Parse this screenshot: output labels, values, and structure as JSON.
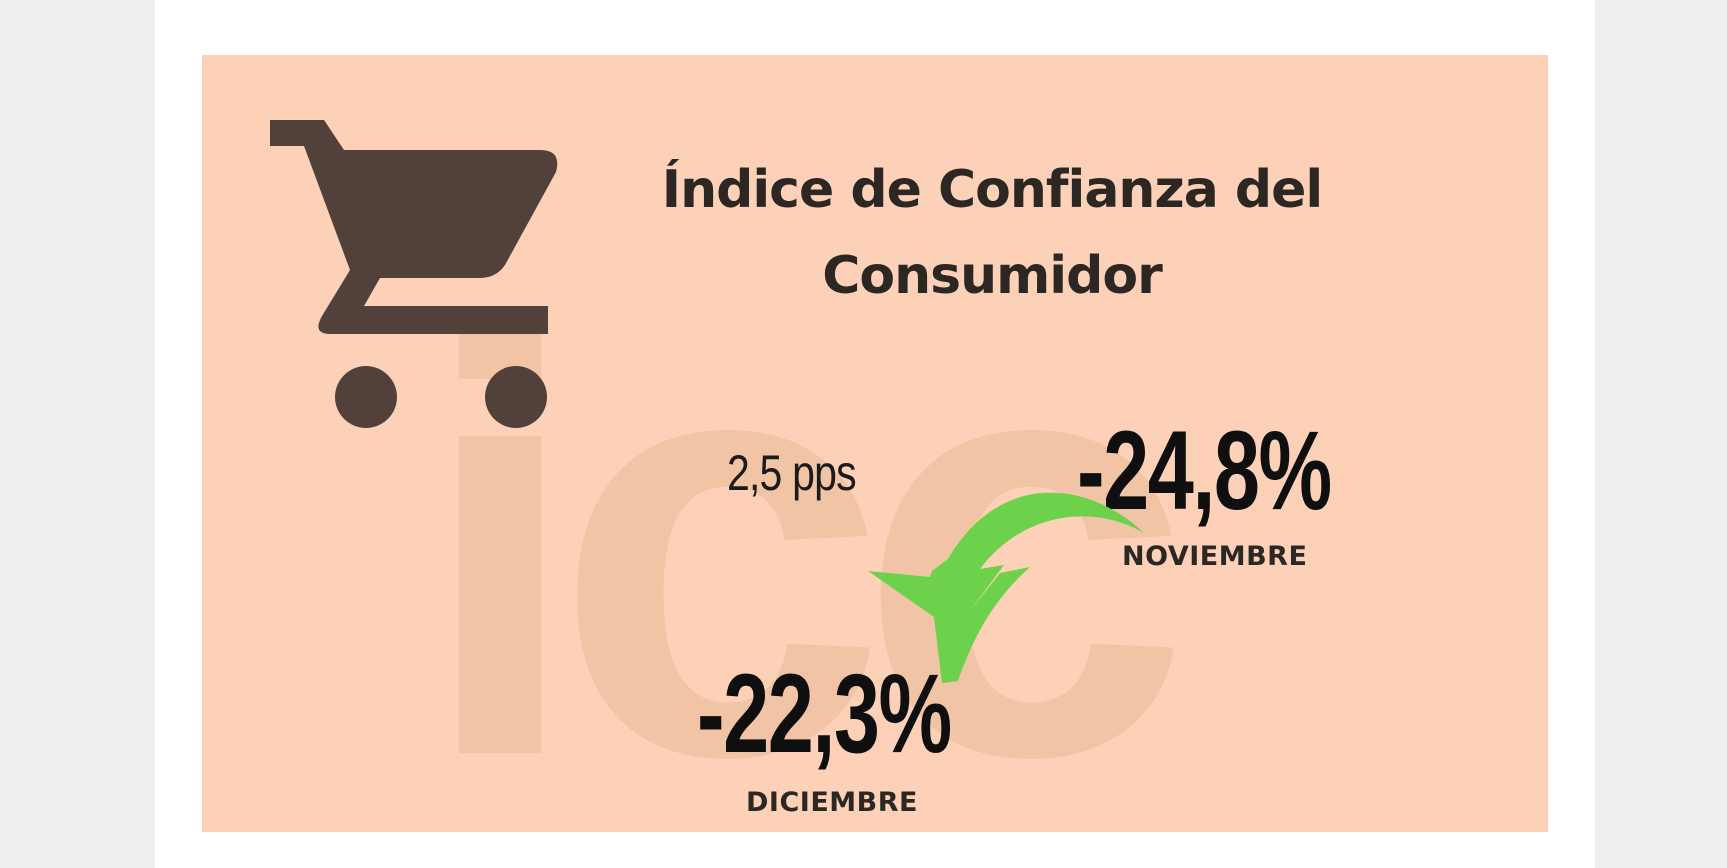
{
  "infographic": {
    "title_line1": "Índice de Confianza del",
    "title_line2": "Consumidor",
    "watermark_text": "icc",
    "change": "2,5 pps",
    "previous": {
      "value": "-24,8%",
      "label": "NOVIEMBRE"
    },
    "current": {
      "value": "-22,3%",
      "label": "DICIEMBRE"
    },
    "icons": {
      "cart": "shopping-cart-icon",
      "arrow": "curved-down-arrow-icon"
    }
  },
  "colors": {
    "page_background": "#eeeff1",
    "card": "#ffffff",
    "panel": "#fdd1b8",
    "watermark": "#f1c4a6",
    "cart": "#51413a",
    "arrow": "#6cd24c",
    "text": "#1b1b1b"
  }
}
